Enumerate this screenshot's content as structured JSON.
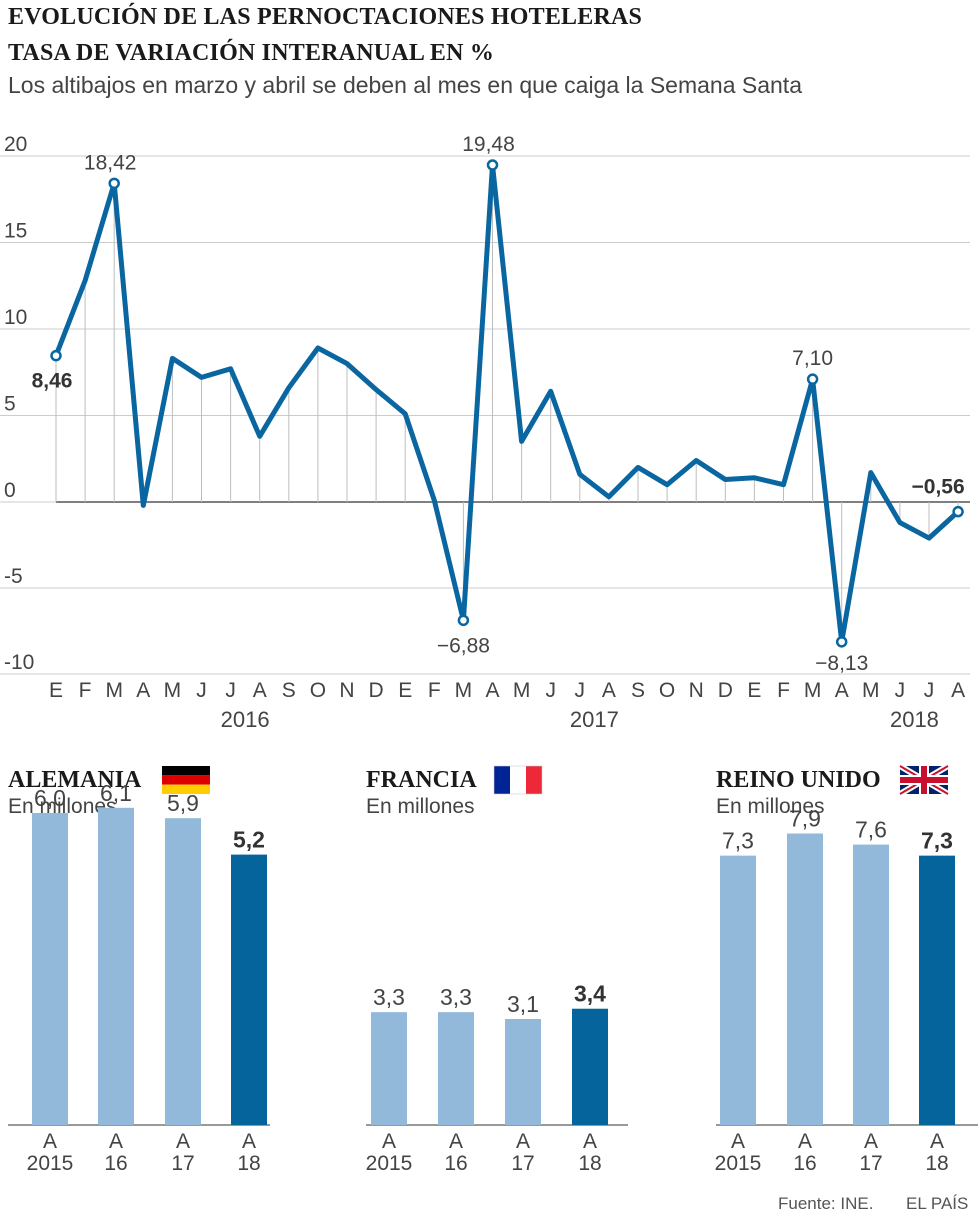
{
  "header": {
    "title": "EVOLUCIÓN DE LAS PERNOCTACIONES HOTELERAS",
    "title2": "TASA DE VARIACIÓN INTERANUAL EN %",
    "subtitle": "Los altibajos en marzo y abril se deben al mes en que caiga la Semana Santa"
  },
  "chart_data": [
    {
      "type": "line",
      "x_months": [
        "E",
        "F",
        "M",
        "A",
        "M",
        "J",
        "J",
        "A",
        "S",
        "O",
        "N",
        "D",
        "E",
        "F",
        "M",
        "A",
        "M",
        "J",
        "J",
        "A",
        "S",
        "O",
        "N",
        "D",
        "E",
        "F",
        "M",
        "A",
        "M",
        "J",
        "J",
        "A"
      ],
      "x_years": [
        {
          "label": "2016",
          "center_index": 6.5
        },
        {
          "label": "2017",
          "center_index": 18.5
        },
        {
          "label": "2018",
          "center_index": 29.5
        }
      ],
      "series": [
        {
          "values": [
            8.46,
            12.8,
            18.42,
            -0.2,
            8.3,
            7.2,
            7.7,
            3.8,
            6.6,
            8.9,
            8.0,
            6.5,
            5.1,
            0.1,
            -6.88,
            19.48,
            3.5,
            6.4,
            1.6,
            0.3,
            2.0,
            1.0,
            2.4,
            1.3,
            1.4,
            1.0,
            7.1,
            -8.13,
            1.7,
            -1.2,
            -2.1,
            -0.56
          ]
        }
      ],
      "annotations": [
        {
          "index": 0,
          "text": "8,46",
          "bold": true
        },
        {
          "index": 2,
          "text": "18,42",
          "bold": false
        },
        {
          "index": 14,
          "text": "−6,88",
          "bold": false
        },
        {
          "index": 15,
          "text": "19,48",
          "bold": false
        },
        {
          "index": 26,
          "text": "7,10",
          "bold": false
        },
        {
          "index": 27,
          "text": "−8,13",
          "bold": false
        },
        {
          "index": 31,
          "text": "−0,56",
          "bold": true
        }
      ],
      "yticks": [
        20,
        15,
        10,
        5,
        0,
        -5,
        -10
      ],
      "ytick_labels": [
        "20",
        "15",
        "10",
        "5",
        "0",
        "-5",
        "-10"
      ],
      "ylim": [
        -10,
        20
      ],
      "grid": true,
      "color": "#0a66a0"
    },
    {
      "type": "bar",
      "title": "ALEMANIA",
      "unit": "En millones",
      "flag": "germany-flag",
      "categories_top": [
        "A",
        "A",
        "A",
        "A"
      ],
      "categories_bottom": [
        "2015",
        "16",
        "17",
        "18"
      ],
      "values": [
        6.0,
        6.1,
        5.9,
        5.2
      ],
      "labels": [
        "6,0",
        "6,1",
        "5,9",
        "5,2"
      ],
      "highlight_index": 3
    },
    {
      "type": "bar",
      "title": "FRANCIA",
      "unit": "En millones",
      "flag": "france-flag",
      "categories_top": [
        "A",
        "A",
        "A",
        "A"
      ],
      "categories_bottom": [
        "2015",
        "16",
        "17",
        "18"
      ],
      "values": [
        3.3,
        3.3,
        3.1,
        3.4
      ],
      "labels": [
        "3,3",
        "3,3",
        "3,1",
        "3,4"
      ],
      "highlight_index": 3
    },
    {
      "type": "bar",
      "title": "REINO UNIDO",
      "unit": "En millones",
      "flag": "uk-flag",
      "categories_top": [
        "A",
        "A",
        "A",
        "A"
      ],
      "categories_bottom": [
        "2015",
        "16",
        "17",
        "18"
      ],
      "values": [
        7.3,
        7.9,
        7.6,
        7.3
      ],
      "labels": [
        "7,3",
        "7,9",
        "7,6",
        "7,3"
      ],
      "highlight_index": 3
    }
  ],
  "colors": {
    "line": "#0a66a0",
    "bar_light": "#93b9da",
    "bar_dark": "#05649c",
    "grid": "#cccccc"
  },
  "footer": {
    "source": "Fuente: INE.",
    "brand": "EL PAÍS"
  }
}
